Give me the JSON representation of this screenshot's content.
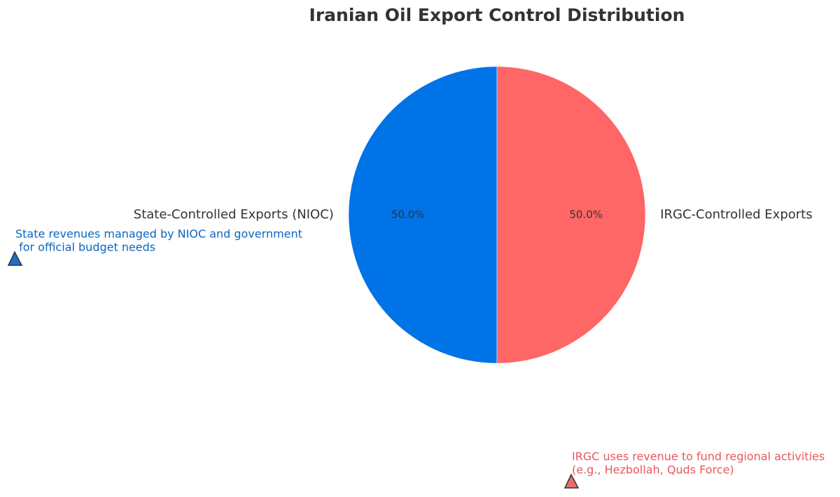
{
  "chart_data": {
    "type": "pie",
    "title": "Iranian Oil Export Control Distribution",
    "categories": [
      "State-Controlled Exports (NIOC)",
      "IRGC-Controlled Exports"
    ],
    "values": [
      50,
      50
    ],
    "value_labels": [
      "50.0%",
      "50.0%"
    ],
    "colors": [
      "#0073e6",
      "#ff6666"
    ],
    "annotations": [
      {
        "lines": [
          "State revenues managed by NIOC and government",
          " for official budget needs"
        ],
        "color": "#0a66c2"
      },
      {
        "lines": [
          "IRGC uses revenue to fund regional activities",
          "(e.g., Hezbollah, Quds Force)"
        ],
        "color": "#e8575a"
      }
    ]
  }
}
